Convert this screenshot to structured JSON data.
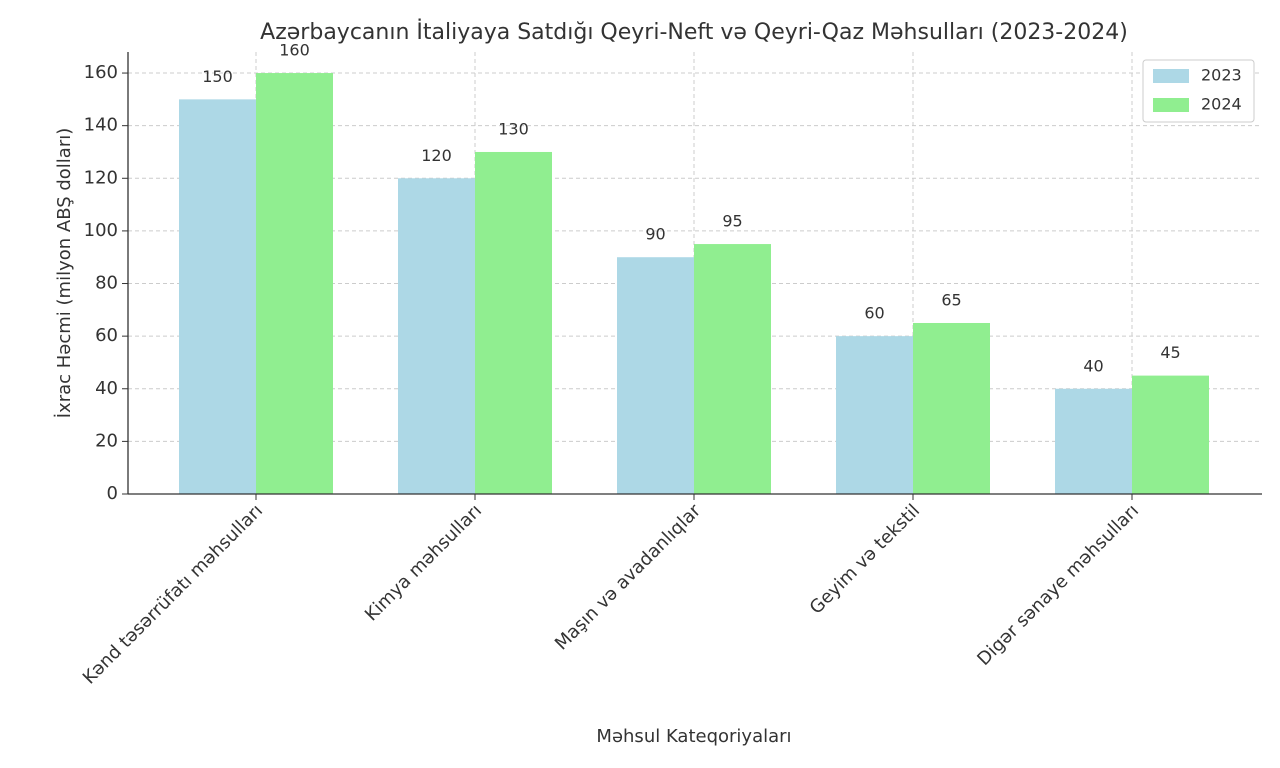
{
  "chart_data": {
    "type": "bar",
    "title": "Azərbaycanın İtaliyaya Satdığı Qeyri-Neft və Qeyri-Qaz Məhsulları (2023-2024)",
    "x_label": "Məhsul Kateqoriyaları",
    "y_label": "İxrac Həcmi (milyon ABŞ dolları)",
    "categories": [
      "Kənd təsərrüfatı məhsulları",
      "Kimya məhsulları",
      "Maşın və avadanlıqlar",
      "Geyim və tekstil",
      "Digər sənaye məhsulları"
    ],
    "series": [
      {
        "name": "2023",
        "color": "#add8e6",
        "values": [
          150,
          120,
          90,
          60,
          40
        ]
      },
      {
        "name": "2024",
        "color": "#90ee90",
        "values": [
          160,
          130,
          95,
          65,
          45
        ]
      }
    ],
    "ylim": [
      0,
      168
    ],
    "yticks": [
      0,
      20,
      40,
      60,
      80,
      100,
      120,
      140,
      160
    ],
    "grid": true,
    "legend": "upper-right"
  }
}
